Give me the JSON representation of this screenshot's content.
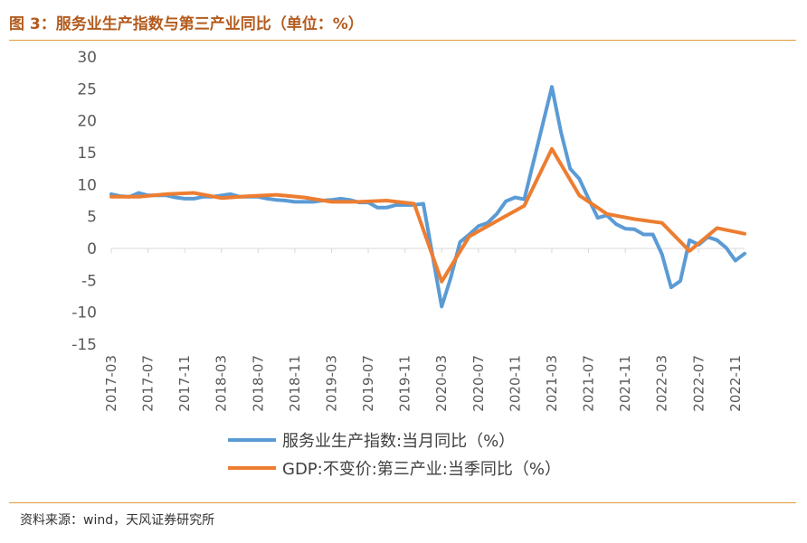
{
  "header": {
    "title": "图 3：服务业生产指数与第三产业同比（单位：%）"
  },
  "footer": {
    "source": "资料来源：wind，天风证券研究所"
  },
  "colors": {
    "series1": "#5b9bd5",
    "series2": "#ed7d31",
    "accent": "#e39a3d",
    "axis": "#d9d9d9",
    "tick_text": "#595959"
  },
  "chart_data": {
    "type": "line",
    "ylim": [
      -15,
      30
    ],
    "yticks": [
      -15,
      -10,
      -5,
      0,
      5,
      10,
      15,
      20,
      25,
      30
    ],
    "xticks": [
      "2017-03",
      "2017-07",
      "2017-11",
      "2018-03",
      "2018-07",
      "2018-11",
      "2019-03",
      "2019-07",
      "2019-11",
      "2020-03",
      "2020-07",
      "2020-11",
      "2021-03",
      "2021-07",
      "2021-11",
      "2022-03",
      "2022-07",
      "2022-11"
    ],
    "x_start": "2017-03",
    "grid": false,
    "legend_position": "bottom",
    "series": [
      {
        "name": "服务业生产指数:当月同比（%）",
        "color": "#5b9bd5",
        "points": [
          [
            "2017-03",
            8.5
          ],
          [
            "2017-04",
            8.2
          ],
          [
            "2017-05",
            8.1
          ],
          [
            "2017-06",
            8.7
          ],
          [
            "2017-07",
            8.3
          ],
          [
            "2017-08",
            8.3
          ],
          [
            "2017-09",
            8.3
          ],
          [
            "2017-10",
            8.0
          ],
          [
            "2017-11",
            7.8
          ],
          [
            "2017-12",
            7.8
          ],
          [
            "2018-01",
            8.1
          ],
          [
            "2018-02",
            8.1
          ],
          [
            "2018-03",
            8.3
          ],
          [
            "2018-04",
            8.5
          ],
          [
            "2018-05",
            8.1
          ],
          [
            "2018-06",
            8.1
          ],
          [
            "2018-07",
            8.1
          ],
          [
            "2018-08",
            7.8
          ],
          [
            "2018-09",
            7.6
          ],
          [
            "2018-10",
            7.5
          ],
          [
            "2018-11",
            7.3
          ],
          [
            "2018-12",
            7.3
          ],
          [
            "2019-01",
            7.3
          ],
          [
            "2019-02",
            7.5
          ],
          [
            "2019-03",
            7.6
          ],
          [
            "2019-04",
            7.8
          ],
          [
            "2019-05",
            7.6
          ],
          [
            "2019-06",
            7.2
          ],
          [
            "2019-07",
            7.2
          ],
          [
            "2019-08",
            6.4
          ],
          [
            "2019-09",
            6.4
          ],
          [
            "2019-10",
            6.8
          ],
          [
            "2019-11",
            6.8
          ],
          [
            "2019-12",
            6.8
          ],
          [
            "2020-01",
            7.0
          ],
          [
            "2020-03",
            -9.1
          ],
          [
            "2020-04",
            -4.5
          ],
          [
            "2020-05",
            1.0
          ],
          [
            "2020-06",
            2.2
          ],
          [
            "2020-07",
            3.5
          ],
          [
            "2020-08",
            4.0
          ],
          [
            "2020-09",
            5.4
          ],
          [
            "2020-10",
            7.4
          ],
          [
            "2020-11",
            8.0
          ],
          [
            "2020-12",
            7.7
          ],
          [
            "2021-03",
            25.3
          ],
          [
            "2021-04",
            18.2
          ],
          [
            "2021-05",
            12.5
          ],
          [
            "2021-06",
            10.9
          ],
          [
            "2021-07",
            7.8
          ],
          [
            "2021-08",
            4.8
          ],
          [
            "2021-09",
            5.2
          ],
          [
            "2021-10",
            3.8
          ],
          [
            "2021-11",
            3.1
          ],
          [
            "2021-12",
            3.0
          ],
          [
            "2022-01",
            2.2
          ],
          [
            "2022-02",
            2.2
          ],
          [
            "2022-03",
            -0.9
          ],
          [
            "2022-04",
            -6.1
          ],
          [
            "2022-05",
            -5.1
          ],
          [
            "2022-06",
            1.3
          ],
          [
            "2022-07",
            0.6
          ],
          [
            "2022-08",
            1.8
          ],
          [
            "2022-09",
            1.3
          ],
          [
            "2022-10",
            0.1
          ],
          [
            "2022-11",
            -1.9
          ],
          [
            "2022-12",
            -0.8
          ]
        ]
      },
      {
        "name": "GDP:不变价:第三产业:当季同比（%）",
        "color": "#ed7d31",
        "points": [
          [
            "2017-03",
            8.1
          ],
          [
            "2017-06",
            8.1
          ],
          [
            "2017-09",
            8.5
          ],
          [
            "2017-12",
            8.7
          ],
          [
            "2018-03",
            7.9
          ],
          [
            "2018-06",
            8.2
          ],
          [
            "2018-09",
            8.4
          ],
          [
            "2018-12",
            8.0
          ],
          [
            "2019-03",
            7.3
          ],
          [
            "2019-06",
            7.3
          ],
          [
            "2019-09",
            7.5
          ],
          [
            "2019-12",
            7.0
          ],
          [
            "2020-03",
            -5.2
          ],
          [
            "2020-06",
            1.9
          ],
          [
            "2020-09",
            4.3
          ],
          [
            "2020-12",
            6.7
          ],
          [
            "2021-03",
            15.6
          ],
          [
            "2021-06",
            8.3
          ],
          [
            "2021-09",
            5.4
          ],
          [
            "2021-12",
            4.6
          ],
          [
            "2022-03",
            4.0
          ],
          [
            "2022-06",
            -0.4
          ],
          [
            "2022-09",
            3.2
          ],
          [
            "2022-12",
            2.3
          ]
        ]
      }
    ]
  }
}
